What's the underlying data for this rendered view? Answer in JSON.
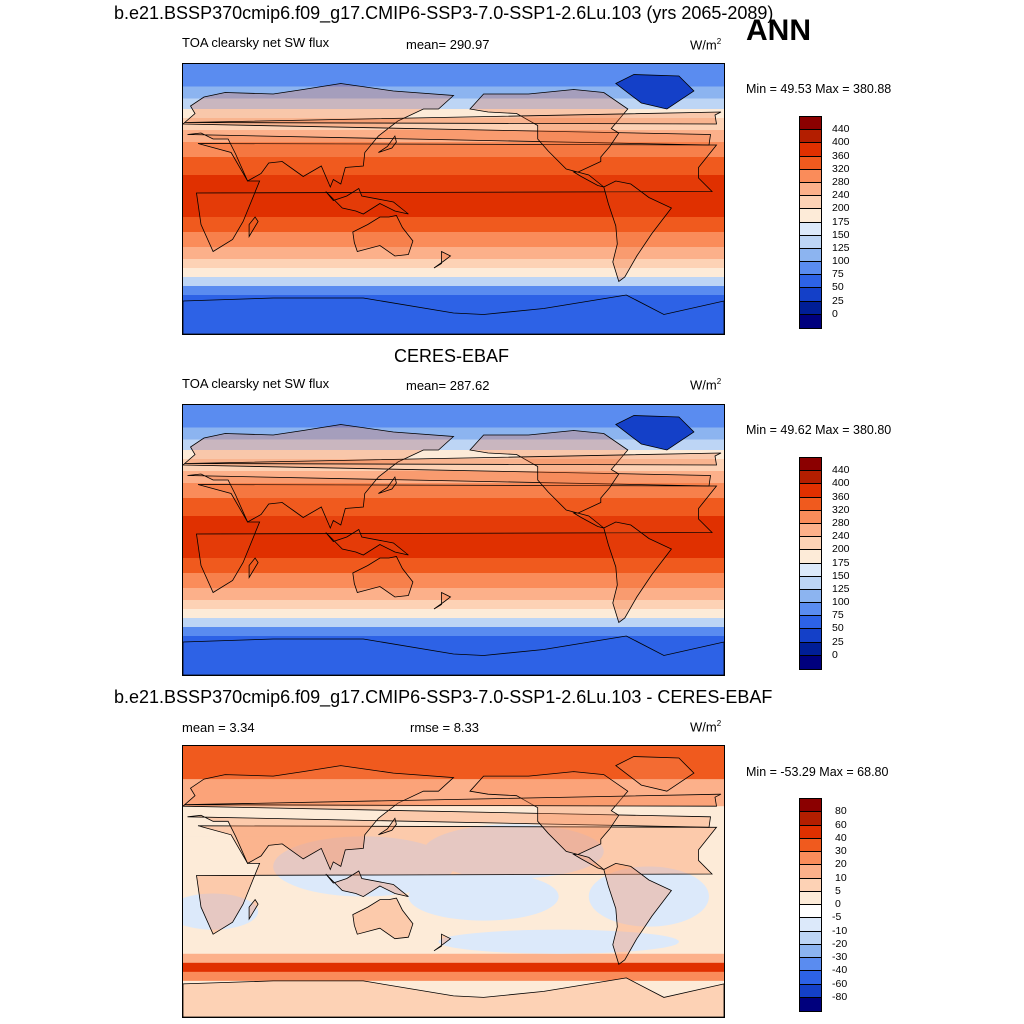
{
  "main_title": "b.e21.BSSP370cmip6.f09_g17.CMIP6-SSP3-7.0-SSP1-2.6Lu.103 (yrs 2065-2089)",
  "season": "ANN",
  "panels": [
    {
      "variable": "TOA clearsky net SW flux",
      "mean_label": "mean= 290.97",
      "units": "W/m",
      "units_sup": "2",
      "minmax": "Min =  49.53 Max = 380.88",
      "colorbar_labels": [
        "440",
        "400",
        "360",
        "320",
        "280",
        "240",
        "200",
        "175",
        "150",
        "125",
        "100",
        "75",
        "50",
        "25",
        "0"
      ]
    },
    {
      "title": "CERES-EBAF",
      "variable": "TOA clearsky net SW flux",
      "mean_label": "mean= 287.62",
      "units": "W/m",
      "units_sup": "2",
      "minmax": "Min =  49.62 Max = 380.80",
      "colorbar_labels": [
        "440",
        "400",
        "360",
        "320",
        "280",
        "240",
        "200",
        "175",
        "150",
        "125",
        "100",
        "75",
        "50",
        "25",
        "0"
      ]
    },
    {
      "title": "b.e21.BSSP370cmip6.f09_g17.CMIP6-SSP3-7.0-SSP1-2.6Lu.103 - CERES-EBAF",
      "mean_label": "mean =   3.34",
      "rmse_label": "rmse =   8.33",
      "units": "W/m",
      "units_sup": "2",
      "minmax": "Min = -53.29 Max =  68.80",
      "colorbar_labels": [
        "80",
        "60",
        "40",
        "30",
        "20",
        "10",
        "5",
        "0",
        "-5",
        "-10",
        "-20",
        "-30",
        "-40",
        "-60",
        "-80"
      ]
    }
  ],
  "colors": {
    "flux_scale": [
      "#8b0000",
      "#b31e00",
      "#e03000",
      "#f05a1e",
      "#fa8c5a",
      "#fcb08a",
      "#fdd2b5",
      "#fdebd8",
      "#dce9fa",
      "#bdd5f5",
      "#8cb4f0",
      "#5a8cf0",
      "#2d62e6",
      "#1440c8",
      "#001e96",
      "#00007d"
    ],
    "diff_scale": [
      "#8b0000",
      "#b31e00",
      "#e03000",
      "#f05a1e",
      "#fa8c5a",
      "#fcb08a",
      "#fdd2b5",
      "#fdebd8",
      "#ffffff",
      "#dce9fa",
      "#bdd5f5",
      "#8cb4f0",
      "#5a8cf0",
      "#2d62e6",
      "#1440c8",
      "#00007d"
    ]
  },
  "icons": [
    "world-map-outline"
  ]
}
